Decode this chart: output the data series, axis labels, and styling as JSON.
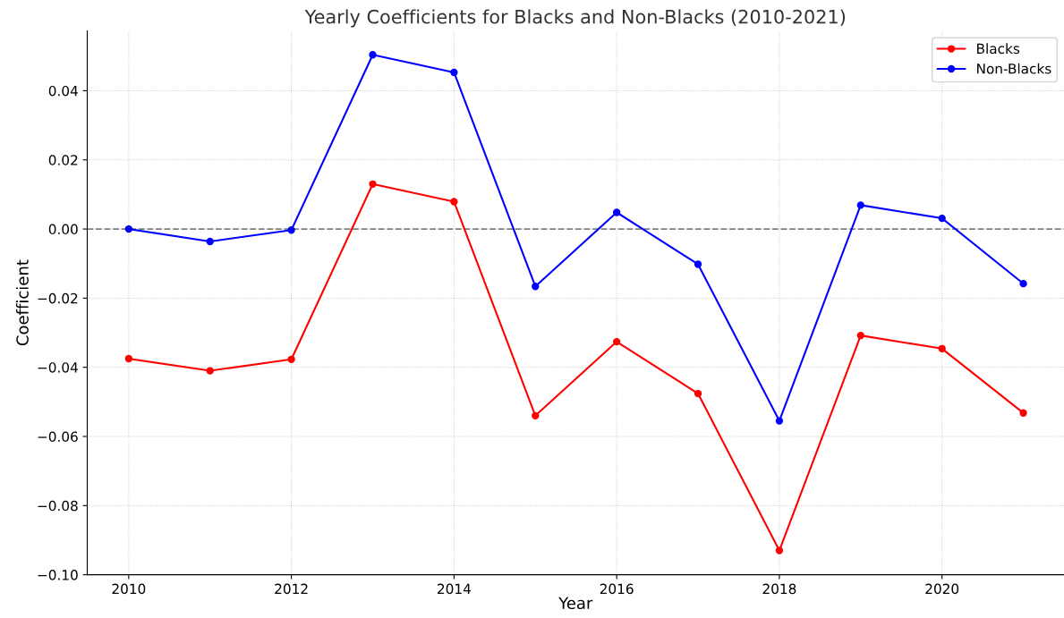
{
  "chart_data": {
    "type": "line",
    "title": "Yearly Coefficients for Blacks and Non-Blacks (2010-2021)",
    "xlabel": "Year",
    "ylabel": "Coefficient",
    "x": [
      2010,
      2011,
      2012,
      2013,
      2014,
      2015,
      2016,
      2017,
      2018,
      2019,
      2020,
      2021
    ],
    "series": [
      {
        "name": "Blacks",
        "color": "#ff0000",
        "values": [
          -0.0375,
          -0.041,
          -0.0377,
          0.013,
          0.0079,
          -0.054,
          -0.0326,
          -0.0476,
          -0.093,
          -0.0308,
          -0.0346,
          -0.0532
        ]
      },
      {
        "name": "Non-Blacks",
        "color": "#0000ff",
        "values": [
          0.0,
          -0.0036,
          -0.0003,
          0.0504,
          0.0453,
          -0.0166,
          0.0048,
          -0.0102,
          -0.0555,
          0.0069,
          0.0031,
          -0.0158
        ]
      }
    ],
    "xlim": [
      2009.49,
      2021.5
    ],
    "xticks": [
      2010,
      2012,
      2014,
      2016,
      2018,
      2020
    ],
    "ylim": [
      -0.1,
      0.0573
    ],
    "yticks": [
      {
        "value": -0.1,
        "label": "−0.10"
      },
      {
        "value": -0.08,
        "label": "−0.08"
      },
      {
        "value": -0.06,
        "label": "−0.06"
      },
      {
        "value": -0.04,
        "label": "−0.04"
      },
      {
        "value": -0.02,
        "label": "−0.02"
      },
      {
        "value": 0,
        "label": "0.00"
      },
      {
        "value": 0.02,
        "label": "0.02"
      },
      {
        "value": 0.04,
        "label": "0.04"
      }
    ],
    "ref_lines": [
      {
        "axis": "y",
        "value": 0,
        "color": "#808080",
        "line_style": "dashed"
      }
    ],
    "grid": true,
    "legend": "top right",
    "marker": "circle",
    "line_style": "solid"
  }
}
